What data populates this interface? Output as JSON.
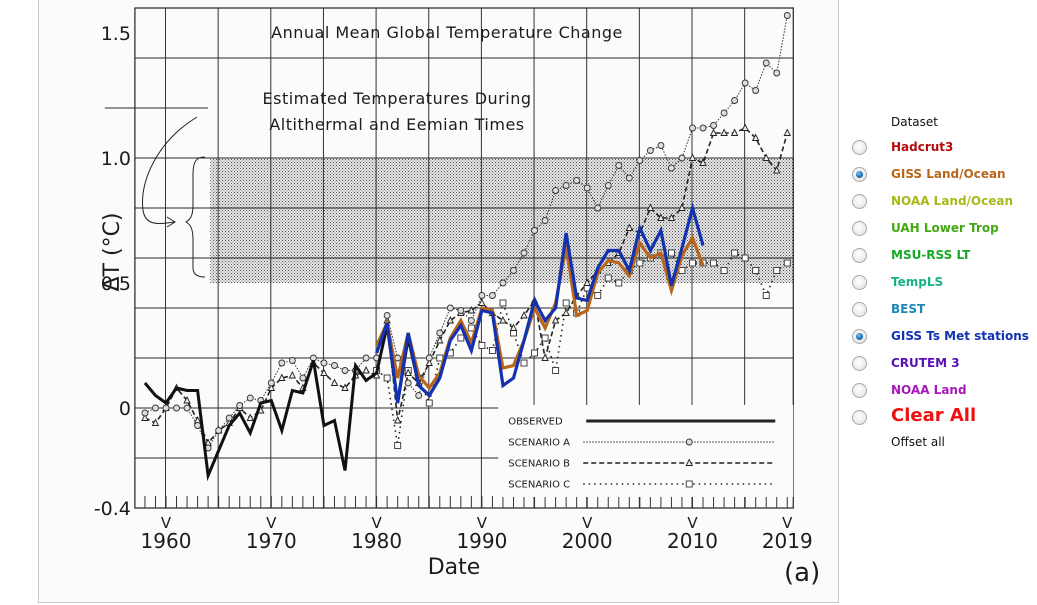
{
  "chart_data": {
    "type": "line",
    "title": "Annual Mean Global Temperature Change",
    "annotation": "Estimated Temperatures During Altithermal and Eemian Times",
    "annotation_band": [
      0.5,
      1.0
    ],
    "xlabel": "Date",
    "ylabel": "ΔT (°C)",
    "panel_label": "(a)",
    "xlim": [
      1957,
      2020
    ],
    "ylim": [
      -0.4,
      1.6
    ],
    "x_ticks": [
      1960,
      1970,
      1980,
      1990,
      2000,
      2010,
      2019
    ],
    "x_tick_labels": [
      "1960",
      "1970",
      "1980",
      "1990",
      "2000",
      "2010",
      "2019"
    ],
    "y_ticks": [
      -0.4,
      0,
      0.5,
      1.0,
      1.5
    ],
    "y_tick_labels": [
      "-0.4",
      "0",
      "0.5",
      "1.0",
      "1.5"
    ],
    "grid": true,
    "legend": {
      "placement": "bottom-right",
      "entries": [
        "OBSERVED",
        "SCENARIO A",
        "SCENARIO B",
        "SCENARIO C"
      ]
    },
    "series": [
      {
        "name": "OBSERVED",
        "style": "solid-black",
        "x": [
          1958,
          1959,
          1960,
          1961,
          1962,
          1963,
          1964,
          1965,
          1966,
          1967,
          1968,
          1969,
          1970,
          1971,
          1972,
          1973,
          1974,
          1975,
          1976,
          1977,
          1978,
          1979,
          1980,
          1981,
          1982,
          1983,
          1984,
          1985,
          1986
        ],
        "values": [
          0.1,
          0.05,
          0.02,
          0.08,
          0.07,
          0.07,
          -0.27,
          -0.17,
          -0.07,
          -0.02,
          -0.1,
          0.02,
          0.03,
          -0.09,
          0.07,
          0.06,
          0.19,
          -0.07,
          -0.05,
          -0.25,
          0.17,
          0.11,
          0.14,
          0.33,
          0.02,
          0.28,
          0.09,
          0.05,
          0.12
        ]
      },
      {
        "name": "SCENARIO A",
        "style": "dotted-circle",
        "x": [
          1958,
          1959,
          1960,
          1961,
          1962,
          1963,
          1964,
          1965,
          1966,
          1967,
          1968,
          1969,
          1970,
          1971,
          1972,
          1973,
          1974,
          1975,
          1976,
          1977,
          1978,
          1979,
          1980,
          1981,
          1982,
          1983,
          1984,
          1985,
          1986,
          1987,
          1988,
          1989,
          1990,
          1991,
          1992,
          1993,
          1994,
          1995,
          1996,
          1997,
          1998,
          1999,
          2000,
          2001,
          2002,
          2003,
          2004,
          2005,
          2006,
          2007,
          2008,
          2009,
          2010,
          2011,
          2012,
          2013,
          2014,
          2015,
          2016,
          2017,
          2018,
          2019
        ],
        "values": [
          -0.02,
          0.0,
          0.0,
          0.0,
          0.0,
          -0.07,
          -0.16,
          -0.09,
          -0.04,
          0.01,
          0.04,
          0.03,
          0.1,
          0.18,
          0.19,
          0.12,
          0.2,
          0.18,
          0.17,
          0.15,
          0.15,
          0.2,
          0.2,
          0.37,
          0.2,
          0.1,
          0.05,
          0.2,
          0.3,
          0.4,
          0.39,
          0.35,
          0.45,
          0.45,
          0.5,
          0.55,
          0.62,
          0.71,
          0.75,
          0.87,
          0.89,
          0.91,
          0.88,
          0.8,
          0.89,
          0.97,
          0.92,
          0.99,
          1.03,
          1.05,
          0.96,
          1.0,
          1.12,
          1.12,
          1.13,
          1.18,
          1.23,
          1.3,
          1.27,
          1.38,
          1.34,
          1.57
        ]
      },
      {
        "name": "SCENARIO B",
        "style": "dashed-triangle",
        "x": [
          1958,
          1959,
          1960,
          1961,
          1962,
          1963,
          1964,
          1965,
          1966,
          1967,
          1968,
          1969,
          1970,
          1971,
          1972,
          1973,
          1974,
          1975,
          1976,
          1977,
          1978,
          1979,
          1980,
          1981,
          1982,
          1983,
          1984,
          1985,
          1986,
          1987,
          1988,
          1989,
          1990,
          1991,
          1992,
          1993,
          1994,
          1995,
          1996,
          1997,
          1998,
          1999,
          2000,
          2001,
          2002,
          2003,
          2004,
          2005,
          2006,
          2007,
          2008,
          2009,
          2010,
          2011,
          2012,
          2013,
          2014,
          2015,
          2016,
          2017,
          2018,
          2019
        ],
        "values": [
          -0.04,
          -0.06,
          0.0,
          0.08,
          0.03,
          -0.05,
          -0.14,
          -0.09,
          -0.06,
          0.0,
          -0.04,
          -0.01,
          0.08,
          0.12,
          0.13,
          0.08,
          0.18,
          0.14,
          0.1,
          0.08,
          0.13,
          0.15,
          0.13,
          0.35,
          -0.05,
          0.14,
          0.1,
          0.18,
          0.27,
          0.35,
          0.38,
          0.39,
          0.42,
          0.38,
          0.35,
          0.32,
          0.37,
          0.43,
          0.2,
          0.35,
          0.38,
          0.45,
          0.5,
          0.55,
          0.58,
          0.62,
          0.72,
          0.7,
          0.8,
          0.76,
          0.76,
          0.8,
          1.0,
          0.98,
          1.1,
          1.1,
          1.1,
          1.12,
          1.08,
          1.0,
          0.95,
          1.1
        ]
      },
      {
        "name": "SCENARIO C",
        "style": "dotted-square",
        "x": [
          1980,
          1981,
          1982,
          1983,
          1984,
          1985,
          1986,
          1987,
          1988,
          1989,
          1990,
          1991,
          1992,
          1993,
          1994,
          1995,
          1996,
          1997,
          1998,
          1999,
          2000,
          2001,
          2002,
          2003,
          2004,
          2005,
          2006,
          2007,
          2008,
          2009,
          2010,
          2011,
          2012,
          2013,
          2014,
          2015,
          2016,
          2017,
          2018,
          2019
        ],
        "values": [
          0.15,
          0.12,
          -0.15,
          0.15,
          0.12,
          0.02,
          0.2,
          0.22,
          0.28,
          0.32,
          0.25,
          0.23,
          0.42,
          0.3,
          0.18,
          0.22,
          0.28,
          0.15,
          0.42,
          0.38,
          0.48,
          0.45,
          0.52,
          0.5,
          0.55,
          0.58,
          0.6,
          0.62,
          0.62,
          0.55,
          0.58,
          0.58,
          0.58,
          0.55,
          0.62,
          0.6,
          0.55,
          0.45,
          0.55,
          0.58
        ]
      },
      {
        "name": "GISS Land/Ocean",
        "style": "overlay",
        "color": "#b8661a",
        "x": [
          1980,
          1981,
          1982,
          1983,
          1984,
          1985,
          1986,
          1987,
          1988,
          1989,
          1990,
          1991,
          1992,
          1993,
          1994,
          1995,
          1996,
          1997,
          1998,
          1999,
          2000,
          2001,
          2002,
          2003,
          2004,
          2005,
          2006,
          2007,
          2008,
          2009,
          2010,
          2011
        ],
        "values": [
          0.25,
          0.34,
          0.12,
          0.3,
          0.13,
          0.08,
          0.14,
          0.28,
          0.35,
          0.26,
          0.4,
          0.39,
          0.16,
          0.17,
          0.27,
          0.4,
          0.32,
          0.42,
          0.65,
          0.37,
          0.39,
          0.54,
          0.59,
          0.58,
          0.53,
          0.66,
          0.6,
          0.62,
          0.47,
          0.61,
          0.68,
          0.57
        ]
      },
      {
        "name": "GISS Ts Met stations",
        "style": "overlay",
        "color": "#1232b0",
        "x": [
          1980,
          1981,
          1982,
          1983,
          1984,
          1985,
          1986,
          1987,
          1988,
          1989,
          1990,
          1991,
          1992,
          1993,
          1994,
          1995,
          1996,
          1997,
          1998,
          1999,
          2000,
          2001,
          2002,
          2003,
          2004,
          2005,
          2006,
          2007,
          2008,
          2009,
          2010,
          2011
        ],
        "values": [
          0.22,
          0.34,
          0.02,
          0.3,
          0.09,
          0.05,
          0.12,
          0.27,
          0.33,
          0.23,
          0.39,
          0.38,
          0.09,
          0.12,
          0.27,
          0.43,
          0.35,
          0.4,
          0.7,
          0.44,
          0.43,
          0.56,
          0.63,
          0.63,
          0.55,
          0.72,
          0.63,
          0.71,
          0.49,
          0.64,
          0.8,
          0.65
        ]
      }
    ]
  },
  "panel": {
    "header": "Dataset",
    "datasets": [
      {
        "label": "Hadcrut3",
        "color": "#b40c0c",
        "checked": false
      },
      {
        "label": "GISS Land/Ocean",
        "color": "#b8661a",
        "checked": true
      },
      {
        "label": "NOAA Land/Ocean",
        "color": "#a8b81a",
        "checked": false
      },
      {
        "label": "UAH Lower Trop",
        "color": "#44a812",
        "checked": false
      },
      {
        "label": "MSU-RSS LT",
        "color": "#18a828",
        "checked": false
      },
      {
        "label": "TempLS",
        "color": "#18b088",
        "checked": false
      },
      {
        "label": "BEST",
        "color": "#1c88b8",
        "checked": false
      },
      {
        "label": "GISS Ts Met stations",
        "color": "#1232b0",
        "checked": true
      },
      {
        "label": "CRUTEM 3",
        "color": "#5a10b8",
        "checked": false
      },
      {
        "label": "NOAA Land",
        "color": "#a818b8",
        "checked": false
      }
    ],
    "clear_all": {
      "label": "Clear All",
      "color": "#ee1111"
    },
    "offset_all": "Offset all"
  }
}
